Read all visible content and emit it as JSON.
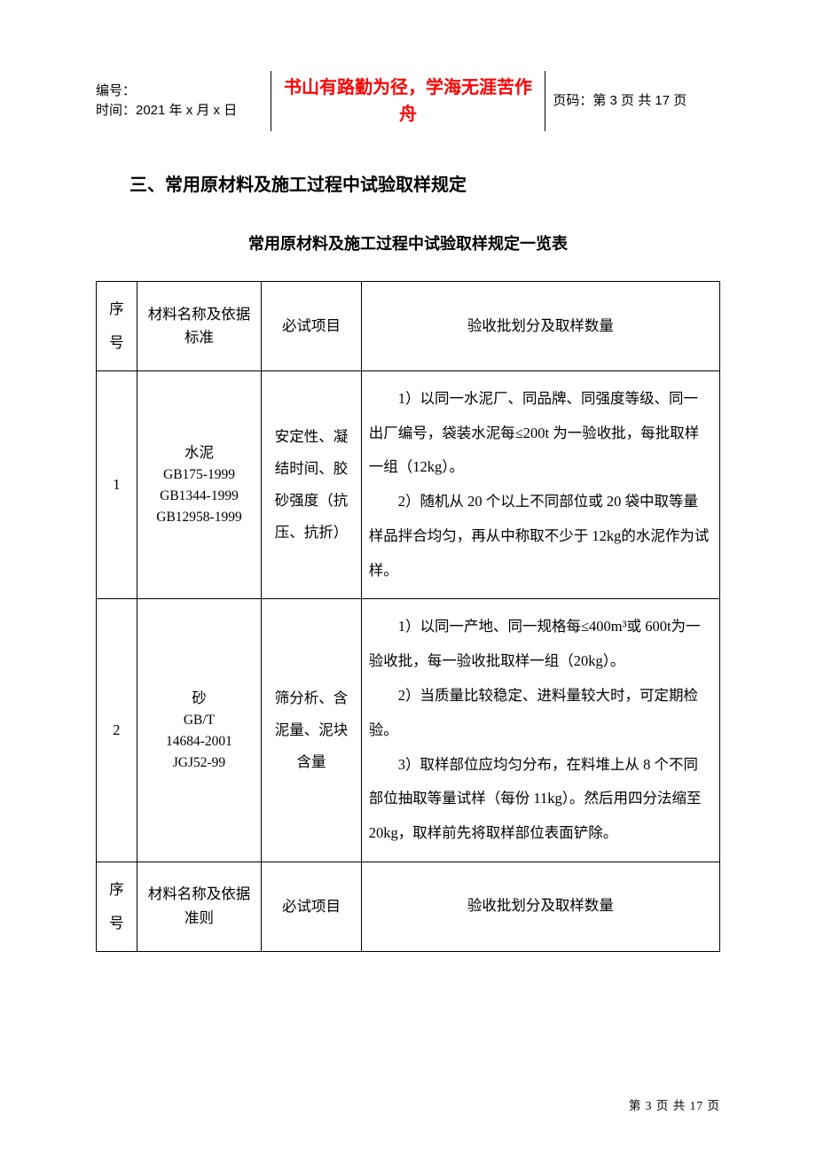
{
  "header": {
    "doc_id_label": "编号：",
    "time_label": "时间：2021 年 x 月 x 日",
    "motto": "书山有路勤为径，学海无涯苦作舟",
    "page_label": "页码：第 3 页 共 17 页"
  },
  "section_heading": "三、常用原材料及施工过程中试验取样规定",
  "subheading": "常用原材料及施工过程中试验取样规定一览表",
  "table": {
    "head": {
      "idx": "序号",
      "name": "材料名称及依据标准",
      "test": "必试项目",
      "desc": "验收批划分及取样数量"
    },
    "rows": [
      {
        "idx": "1",
        "name_cn": "水泥",
        "name_std": "GB175-1999\nGB1344-1999\nGB12958-1999",
        "test": "安定性、凝结时间、胶砂强度（抗压、抗折）",
        "desc1": "1）以同一水泥厂、同品牌、同强度等级、同一出厂编号，袋装水泥每≤200t 为一验收批，每批取样一组（12kg）。",
        "desc2": "2）随机从 20 个以上不同部位或 20 袋中取等量样品拌合均匀，再从中称取不少于 12kg的水泥作为试样。"
      },
      {
        "idx": "2",
        "name_cn": "砂",
        "name_std": "GB/T\n14684-2001\nJGJ52-99",
        "test": "筛分析、含泥量、泥块含量",
        "desc1": "1）以同一产地、同一规格每≤400m³或 600t为一验收批，每一验收批取样一组（20kg）。",
        "desc2": "2）当质量比较稳定、进料量较大时，可定期检验。",
        "desc3": "3）取样部位应均匀分布，在料堆上从 8 个不同部位抽取等量试样（每份 11kg）。然后用四分法缩至 20kg，取样前先将取样部位表面铲除。"
      }
    ],
    "foot": {
      "idx": "序号",
      "name": "材料名称及依据准则",
      "test": "必试项目",
      "desc": "验收批划分及取样数量"
    }
  },
  "footer": "第 3 页 共 17 页"
}
